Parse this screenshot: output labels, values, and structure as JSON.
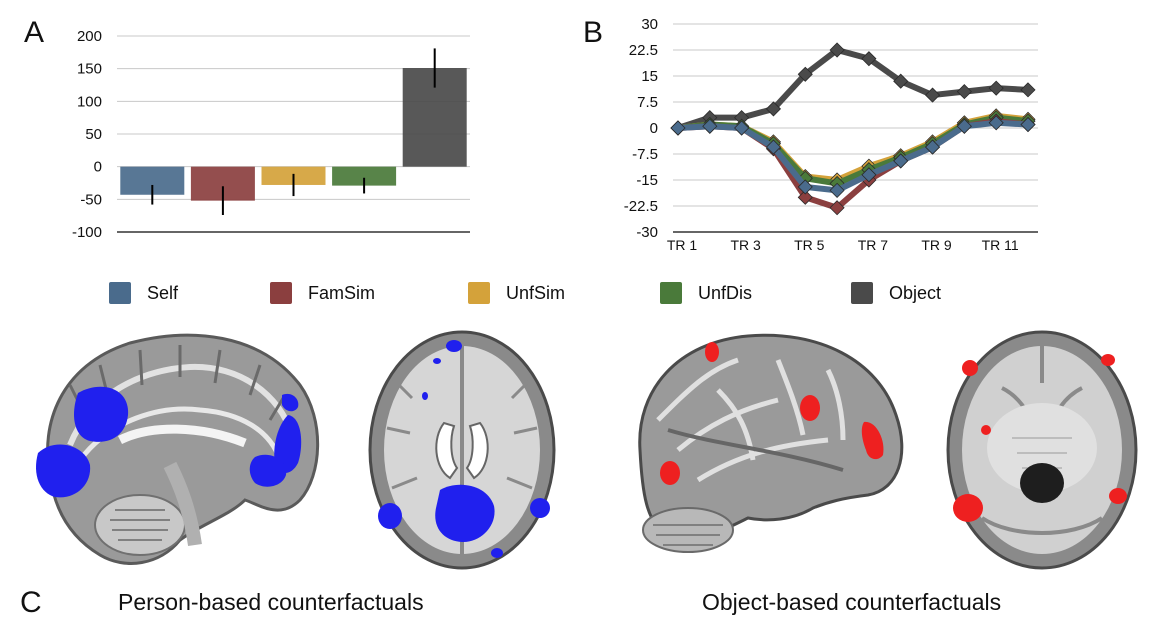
{
  "panels": {
    "a": "A",
    "b": "B",
    "c": "C"
  },
  "captions": {
    "person": "Person-based counterfactuals",
    "object": "Object-based counterfactuals"
  },
  "legend": [
    {
      "label": "Self",
      "color": "#4a6b8c"
    },
    {
      "label": "FamSim",
      "color": "#8b3f3f"
    },
    {
      "label": "UnfSim",
      "color": "#d4a23a"
    },
    {
      "label": "UnfDis",
      "color": "#4a7a3a"
    },
    {
      "label": "Object",
      "color": "#4a4a4a"
    }
  ],
  "chart_data": [
    {
      "type": "bar",
      "categories": [
        "Self",
        "FamSim",
        "UnfSim",
        "UnfDis",
        "Object"
      ],
      "values": [
        -43,
        -52,
        -28,
        -29,
        151
      ],
      "error": [
        15,
        22,
        17,
        12,
        30
      ],
      "colors": [
        "#4a6b8c",
        "#8b3f3f",
        "#d4a23a",
        "#4a7a3a",
        "#4a4a4a"
      ],
      "ylim": [
        -100,
        200
      ],
      "yticks": [
        200,
        150,
        100,
        50,
        0,
        -50,
        -100
      ],
      "grid": true
    },
    {
      "type": "line",
      "x": [
        1,
        2,
        3,
        4,
        5,
        6,
        7,
        8,
        9,
        10,
        11,
        12
      ],
      "xticklabels": [
        "TR 1",
        "TR 3",
        "TR 5",
        "TR 7",
        "TR 9",
        "TR 11"
      ],
      "xtickpositions": [
        1,
        3,
        5,
        7,
        9,
        11
      ],
      "ylim": [
        -30,
        30
      ],
      "yticks": [
        "30",
        "22.5",
        "15",
        "7.5",
        "0",
        "-7.5",
        "-15",
        "-22.5",
        "-30"
      ],
      "ytickvalues": [
        30,
        22.5,
        15,
        7.5,
        0,
        -7.5,
        -15,
        -22.5,
        -30
      ],
      "grid": true,
      "series": [
        {
          "name": "Object",
          "color": "#4a4a4a",
          "values": [
            0,
            3,
            3,
            5.5,
            15.5,
            22.5,
            20,
            13.5,
            9.5,
            10.5,
            11.5,
            11
          ]
        },
        {
          "name": "UnfSim",
          "color": "#d4a23a",
          "values": [
            0,
            1,
            0.5,
            -4,
            -14,
            -15,
            -11,
            -8,
            -4,
            1.5,
            3.5,
            2.5
          ]
        },
        {
          "name": "UnfDis",
          "color": "#4a7a3a",
          "values": [
            0,
            1,
            0.5,
            -4.5,
            -14.5,
            -16,
            -12,
            -8.5,
            -4.5,
            1,
            3,
            2
          ]
        },
        {
          "name": "FamSim",
          "color": "#8b3f3f",
          "values": [
            0,
            0.5,
            0,
            -6,
            -20,
            -23,
            -15,
            -9.5,
            -5.5,
            0.5,
            2,
            1
          ]
        },
        {
          "name": "Self",
          "color": "#4a6b8c",
          "values": [
            0,
            0.5,
            0,
            -5.5,
            -17,
            -18,
            -13.5,
            -9.5,
            -5.5,
            0.5,
            1.5,
            1
          ]
        }
      ]
    }
  ]
}
